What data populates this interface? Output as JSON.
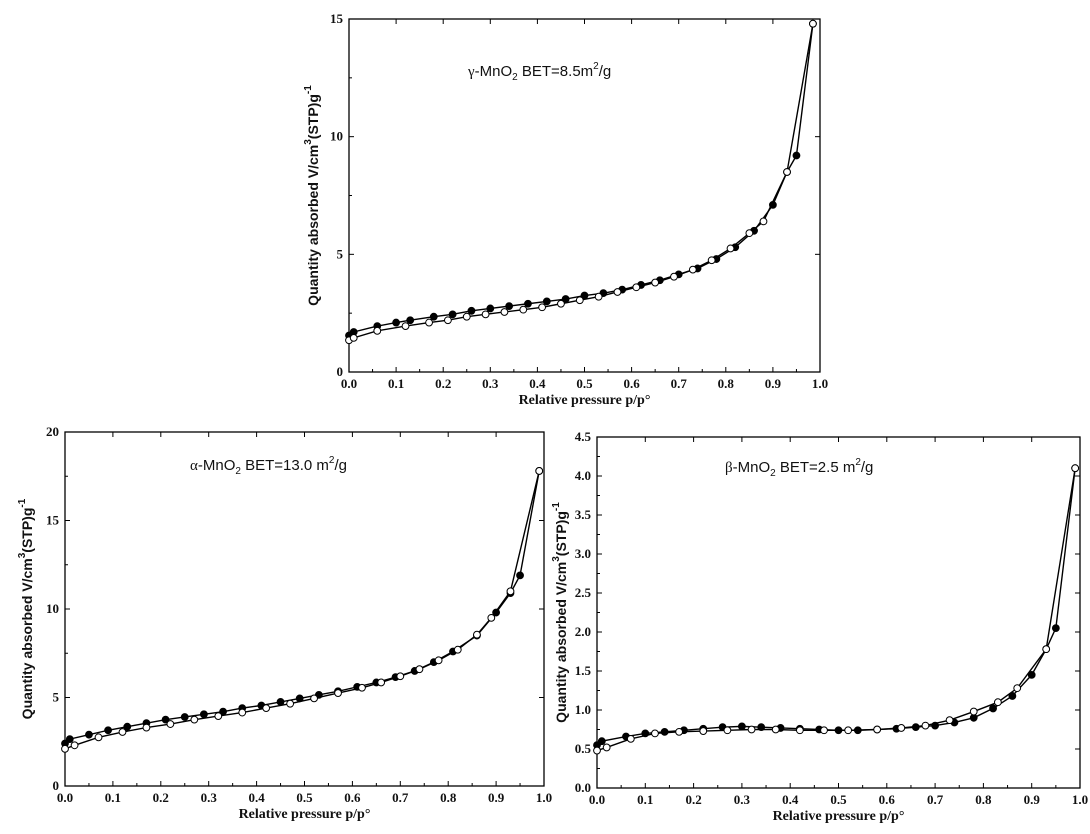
{
  "chart_data": [
    {
      "type": "line",
      "annotation": {
        "greek": "γ",
        "compound": "-MnO",
        "sub": "2",
        "bet": " BET=8.5m",
        "sup": "2",
        "unit": "/g"
      },
      "xlabel": "Relative pressure p/p°",
      "ylabel": {
        "main": "Quantity absorbed V/cm",
        "sup3": "3",
        "tail": "(STP)g",
        "sup": "-1"
      },
      "xlim": [
        0,
        1.0
      ],
      "ylim": [
        0,
        15
      ],
      "xticks": [
        "0.0",
        "0.1",
        "0.2",
        "0.3",
        "0.4",
        "0.5",
        "0.6",
        "0.7",
        "0.8",
        "0.9",
        "1.0"
      ],
      "yticks": [
        "0",
        "5",
        "10",
        "15"
      ],
      "series": [
        {
          "marker": "filled",
          "x": [
            0.0,
            0.01,
            0.06,
            0.1,
            0.13,
            0.18,
            0.22,
            0.26,
            0.3,
            0.34,
            0.38,
            0.42,
            0.46,
            0.5,
            0.54,
            0.58,
            0.62,
            0.66,
            0.7,
            0.74,
            0.78,
            0.82,
            0.86,
            0.9,
            0.93,
            0.95,
            0.985
          ],
          "y": [
            1.55,
            1.7,
            1.95,
            2.1,
            2.2,
            2.35,
            2.45,
            2.6,
            2.7,
            2.8,
            2.9,
            3.0,
            3.1,
            3.25,
            3.35,
            3.5,
            3.7,
            3.9,
            4.15,
            4.4,
            4.8,
            5.3,
            6.0,
            7.1,
            8.5,
            9.2,
            14.8
          ]
        },
        {
          "marker": "open",
          "x": [
            0.0,
            0.01,
            0.06,
            0.12,
            0.17,
            0.21,
            0.25,
            0.29,
            0.33,
            0.37,
            0.41,
            0.45,
            0.49,
            0.53,
            0.57,
            0.61,
            0.65,
            0.69,
            0.73,
            0.77,
            0.81,
            0.85,
            0.88,
            0.93,
            0.985
          ],
          "y": [
            1.35,
            1.45,
            1.75,
            1.95,
            2.1,
            2.2,
            2.35,
            2.45,
            2.55,
            2.65,
            2.75,
            2.9,
            3.05,
            3.2,
            3.4,
            3.6,
            3.8,
            4.05,
            4.35,
            4.75,
            5.25,
            5.9,
            6.4,
            8.5,
            14.8
          ]
        }
      ]
    },
    {
      "type": "line",
      "annotation": {
        "greek": "α",
        "compound": "-MnO",
        "sub": "2",
        "bet": " BET=13.0 m",
        "sup": "2",
        "unit": "/g"
      },
      "xlabel": "Relative pressure p/p°",
      "ylabel": {
        "main": "Quantity absorbed V/cm",
        "sup3": "3",
        "tail": "(STP)g",
        "sup": "-1"
      },
      "xlim": [
        0,
        1.0
      ],
      "ylim": [
        0,
        20
      ],
      "xticks": [
        "0.0",
        "0.1",
        "0.2",
        "0.3",
        "0.4",
        "0.5",
        "0.6",
        "0.7",
        "0.8",
        "0.9",
        "1.0"
      ],
      "yticks": [
        "0",
        "5",
        "10",
        "15",
        "20"
      ],
      "series": [
        {
          "marker": "filled",
          "x": [
            0.0,
            0.01,
            0.05,
            0.09,
            0.13,
            0.17,
            0.21,
            0.25,
            0.29,
            0.33,
            0.37,
            0.41,
            0.45,
            0.49,
            0.53,
            0.57,
            0.61,
            0.65,
            0.69,
            0.73,
            0.77,
            0.81,
            0.86,
            0.9,
            0.93,
            0.95,
            0.99
          ],
          "y": [
            2.4,
            2.65,
            2.9,
            3.15,
            3.35,
            3.55,
            3.75,
            3.9,
            4.05,
            4.2,
            4.4,
            4.55,
            4.75,
            4.95,
            5.15,
            5.35,
            5.6,
            5.85,
            6.15,
            6.5,
            7.0,
            7.6,
            8.5,
            9.8,
            10.9,
            11.9,
            17.8
          ]
        },
        {
          "marker": "open",
          "x": [
            0.0,
            0.02,
            0.07,
            0.12,
            0.17,
            0.22,
            0.27,
            0.32,
            0.37,
            0.42,
            0.47,
            0.52,
            0.57,
            0.62,
            0.66,
            0.7,
            0.74,
            0.78,
            0.82,
            0.86,
            0.89,
            0.93,
            0.99
          ],
          "y": [
            2.1,
            2.3,
            2.75,
            3.05,
            3.3,
            3.5,
            3.75,
            3.95,
            4.15,
            4.4,
            4.65,
            4.95,
            5.25,
            5.55,
            5.85,
            6.2,
            6.6,
            7.1,
            7.7,
            8.55,
            9.5,
            11.0,
            17.8
          ]
        }
      ]
    },
    {
      "type": "line",
      "annotation": {
        "greek": "β",
        "compound": "-MnO",
        "sub": "2",
        "bet": " BET=2.5 m",
        "sup": "2",
        "unit": "/g"
      },
      "xlabel": "Relative pressure p/p°",
      "ylabel": {
        "main": "Quantity absorbed V/cm",
        "sup3": "3",
        "tail": "(STP)g",
        "sup": "-1"
      },
      "xlim": [
        0,
        1.0
      ],
      "ylim": [
        0,
        4.5
      ],
      "xticks": [
        "0.0",
        "0.1",
        "0.2",
        "0.3",
        "0.4",
        "0.5",
        "0.6",
        "0.7",
        "0.8",
        "0.9",
        "1.0"
      ],
      "yticks": [
        "0.0",
        "0.5",
        "1.0",
        "1.5",
        "2.0",
        "2.5",
        "3.0",
        "3.5",
        "4.0",
        "4.5"
      ],
      "series": [
        {
          "marker": "filled",
          "x": [
            0.0,
            0.01,
            0.06,
            0.1,
            0.14,
            0.18,
            0.22,
            0.26,
            0.3,
            0.34,
            0.38,
            0.42,
            0.46,
            0.5,
            0.54,
            0.58,
            0.62,
            0.66,
            0.7,
            0.74,
            0.78,
            0.82,
            0.86,
            0.9,
            0.93,
            0.95,
            0.99
          ],
          "y": [
            0.55,
            0.6,
            0.66,
            0.7,
            0.72,
            0.74,
            0.76,
            0.78,
            0.79,
            0.78,
            0.77,
            0.76,
            0.75,
            0.74,
            0.74,
            0.75,
            0.76,
            0.78,
            0.8,
            0.84,
            0.9,
            1.02,
            1.18,
            1.45,
            1.78,
            2.05,
            4.1
          ]
        },
        {
          "marker": "open",
          "x": [
            0.0,
            0.02,
            0.07,
            0.12,
            0.17,
            0.22,
            0.27,
            0.32,
            0.37,
            0.42,
            0.47,
            0.52,
            0.58,
            0.63,
            0.68,
            0.73,
            0.78,
            0.83,
            0.87,
            0.93,
            0.99
          ],
          "y": [
            0.48,
            0.52,
            0.63,
            0.7,
            0.72,
            0.73,
            0.74,
            0.75,
            0.75,
            0.74,
            0.74,
            0.74,
            0.75,
            0.77,
            0.8,
            0.87,
            0.98,
            1.1,
            1.28,
            1.78,
            4.1
          ]
        }
      ]
    }
  ]
}
